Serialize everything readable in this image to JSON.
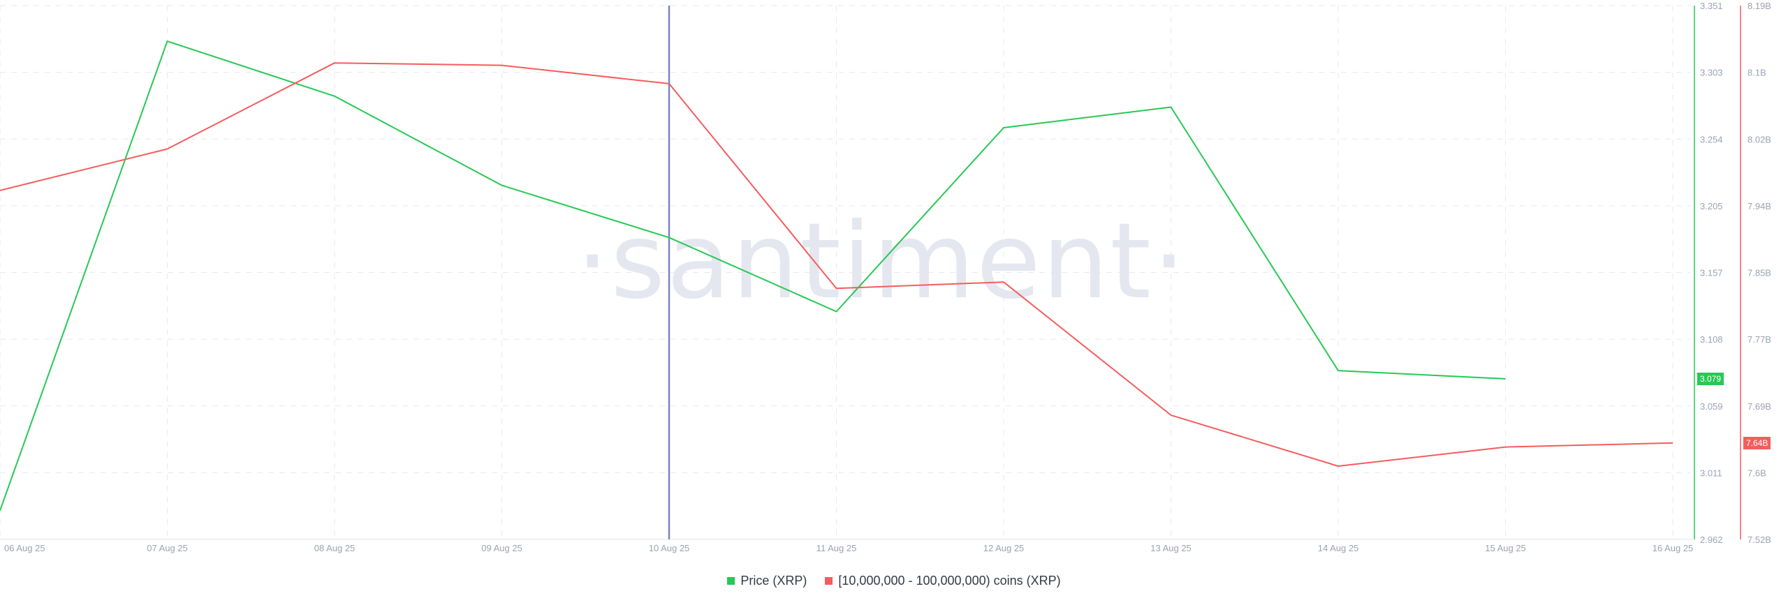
{
  "chart_data": {
    "type": "line",
    "watermark": "·santiment·",
    "categories": [
      "06 Aug 25",
      "07 Aug 25",
      "08 Aug 25",
      "09 Aug 25",
      "10 Aug 25",
      "11 Aug 25",
      "12 Aug 25",
      "13 Aug 25",
      "14 Aug 25",
      "15 Aug 25",
      "16 Aug 25"
    ],
    "series": [
      {
        "name": "Price (XRP)",
        "color": "#26c953",
        "axis": "left",
        "values": [
          2.983,
          3.325,
          3.285,
          3.22,
          3.182,
          3.128,
          3.262,
          3.277,
          3.085,
          3.079,
          null
        ],
        "last_badge": "3.079"
      },
      {
        "name": "[10,000,000 - 100,000,000) coins (XRP)",
        "color": "#f55c5c",
        "axis": "right",
        "values": [
          7.958,
          8.01,
          8.118,
          8.115,
          8.092,
          7.835,
          7.843,
          7.676,
          7.612,
          7.636,
          7.641
        ],
        "last_badge": "7.64B"
      }
    ],
    "left_axis": {
      "ticks": [
        "3.351",
        "3.303",
        "3.254",
        "3.205",
        "3.157",
        "3.108",
        "3.059",
        "3.011",
        "2.962"
      ],
      "ylim": [
        2.962,
        3.351
      ],
      "color": "#26c953"
    },
    "right_axis": {
      "ticks": [
        "8.19B",
        "8.1B",
        "8.02B",
        "7.94B",
        "7.85B",
        "7.77B",
        "7.69B",
        "7.6B",
        "7.52B"
      ],
      "ylim": [
        7.52,
        8.19
      ],
      "color": "#f55c5c"
    },
    "highlight_category": "10 Aug 25",
    "highlight_color": "#7b86b8",
    "grid": true,
    "legend_position": "bottom-center"
  }
}
